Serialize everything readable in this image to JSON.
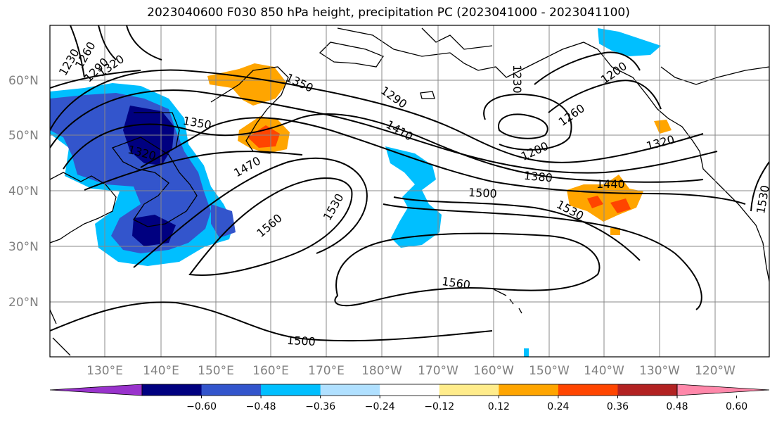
{
  "title": "2023040600 F030 850 hPa height, precipitation PC (2023041000 - 2023041100)",
  "lat_labels": [
    "60°N",
    "50°N",
    "40°N",
    "30°N",
    "20°N"
  ],
  "lon_labels": [
    "130°E",
    "140°E",
    "150°E",
    "160°E",
    "170°E",
    "180°W",
    "170°W",
    "160°W",
    "150°W",
    "140°W",
    "130°W",
    "120°W"
  ],
  "contour_labels": [
    "1230",
    "1260",
    "1290",
    "1320",
    "1350",
    "1350",
    "1320",
    "1470",
    "1560",
    "1530",
    "1290",
    "1410",
    "1230",
    "1200",
    "1260",
    "1200",
    "1320",
    "1380",
    "1440",
    "1500",
    "1530",
    "1560",
    "1500",
    "1530"
  ],
  "colorbar": {
    "colors": [
      "#9933cc",
      "#000080",
      "#3355cc",
      "#00bfff",
      "#b0e0ff",
      "#ffffff",
      "#ffec8b",
      "#ffa500",
      "#ff4500",
      "#b22222",
      "#ff88aa"
    ],
    "tick_labels": [
      "−0.60",
      "−0.48",
      "−0.36",
      "−0.24",
      "−0.12",
      "0.12",
      "0.24",
      "0.36",
      "0.48",
      "0.60"
    ],
    "tick_values": [
      -0.6,
      -0.48,
      -0.36,
      -0.24,
      -0.12,
      0.12,
      0.24,
      0.36,
      0.48,
      0.6
    ]
  },
  "colors": {
    "grid": "#888888",
    "frame": "#000000",
    "tick_text": "#808080"
  }
}
